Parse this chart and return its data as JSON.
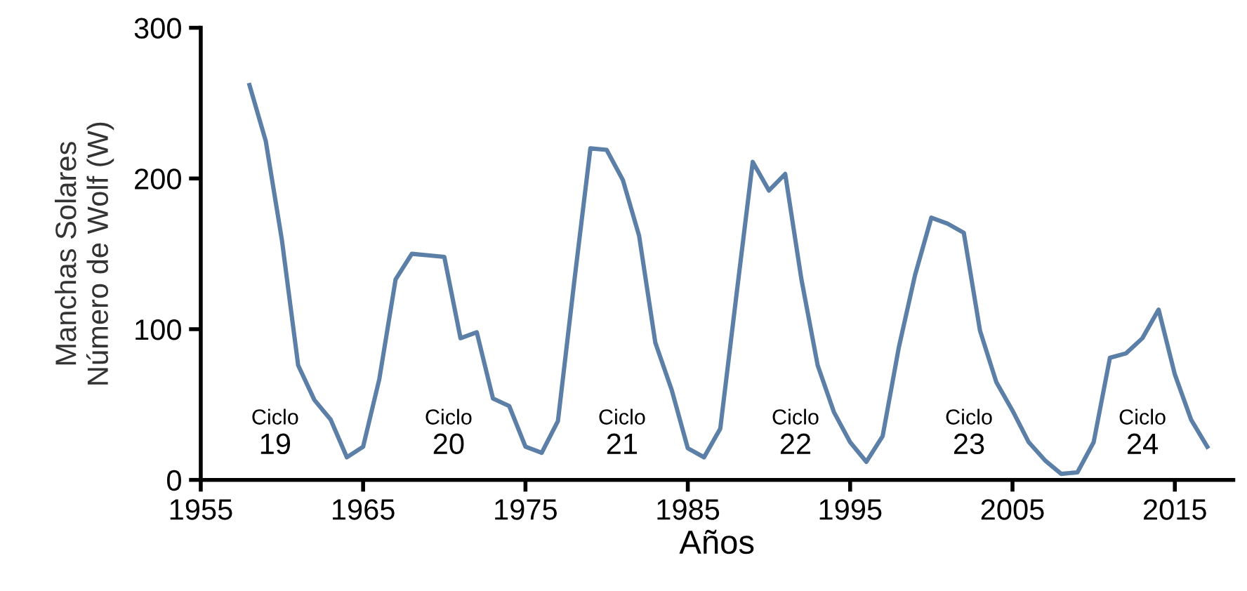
{
  "chart_data": {
    "type": "line",
    "xlabel": "Años",
    "ylabel": "Manchas Solares\nNúmero de Wolf (W)",
    "x": [
      1958,
      1959,
      1960,
      1961,
      1962,
      1963,
      1964,
      1965,
      1966,
      1967,
      1968,
      1969,
      1970,
      1971,
      1972,
      1973,
      1974,
      1975,
      1976,
      1977,
      1978,
      1979,
      1980,
      1981,
      1982,
      1983,
      1984,
      1985,
      1986,
      1987,
      1988,
      1989,
      1990,
      1991,
      1992,
      1993,
      1994,
      1995,
      1996,
      1997,
      1998,
      1999,
      2000,
      2001,
      2002,
      2003,
      2004,
      2005,
      2006,
      2007,
      2008,
      2009,
      2010,
      2011,
      2012,
      2013,
      2014,
      2015,
      2016,
      2017
    ],
    "series": [
      {
        "color": "#5b7fa6",
        "values": [
          262,
          225,
          159,
          76,
          53,
          40,
          15,
          22,
          67,
          133,
          150,
          149,
          148,
          94,
          98,
          54,
          49,
          22,
          18,
          39,
          131,
          220,
          219,
          199,
          162,
          91,
          60,
          21,
          15,
          34,
          123,
          211,
          192,
          203,
          133,
          76,
          45,
          25,
          12,
          29,
          88,
          136,
          174,
          170,
          164,
          99,
          65,
          46,
          25,
          13,
          4,
          5,
          25,
          81,
          84,
          94,
          113,
          70,
          40,
          22
        ]
      }
    ],
    "xlim": [
      1955,
      2018.6
    ],
    "ylim": [
      0,
      300
    ],
    "xticks": [
      1955,
      1965,
      1975,
      1985,
      1995,
      2005,
      2015
    ],
    "yticks": [
      0,
      100,
      200,
      300
    ],
    "grid": false,
    "marker": "none",
    "line_style": "solid",
    "annotations": [
      "Ciclo\n19",
      "Ciclo\n20",
      "Ciclo\n21",
      "Ciclo\n22",
      "Ciclo\n23",
      "Ciclo\n24"
    ]
  }
}
